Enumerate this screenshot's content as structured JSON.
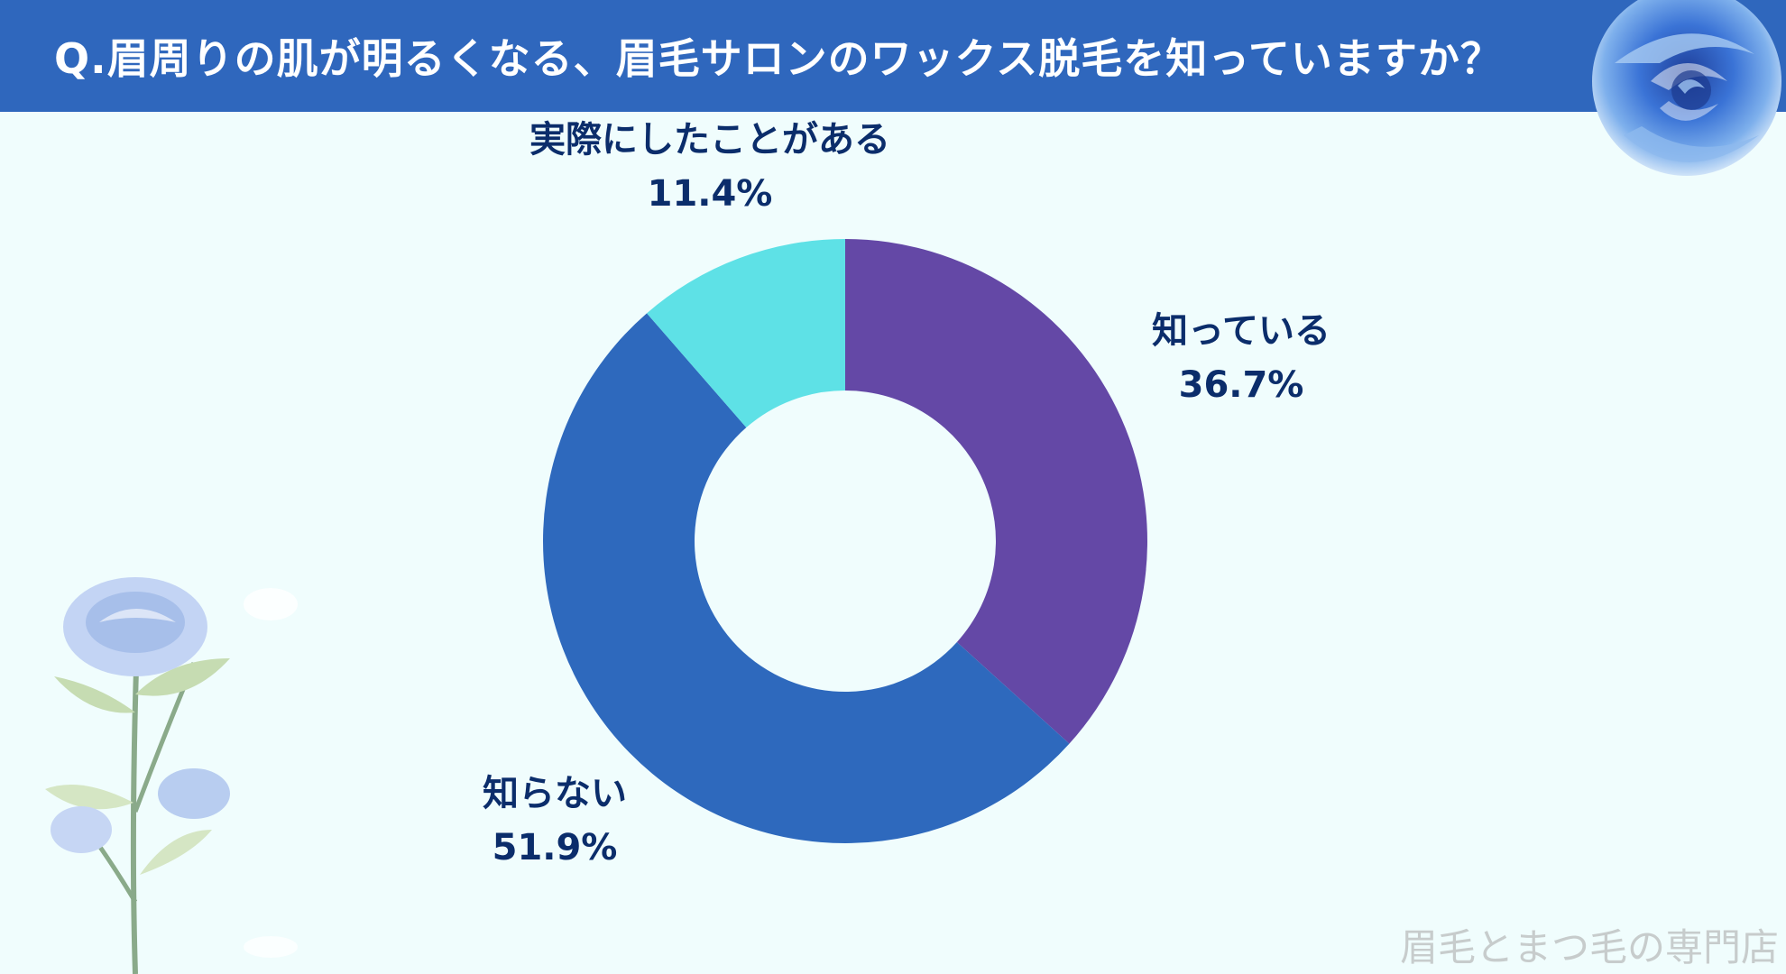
{
  "title": "Q.眉周りの肌が明るくなる、眉毛サロンのワックス脱毛を知っていますか？",
  "watermark": "眉毛とまつ毛の専門店",
  "colors": {
    "header": "#2f67bd",
    "label": "#0b2d6b",
    "background": "#f0fdfd"
  },
  "chart_data": {
    "type": "pie",
    "donut": true,
    "slices": [
      {
        "label": "知っている",
        "value": 36.7,
        "display": "36.7%",
        "color": "#6448a6"
      },
      {
        "label": "知らない",
        "value": 51.9,
        "display": "51.9%",
        "color": "#2e69bd"
      },
      {
        "label": "実際にしたことがある",
        "value": 11.4,
        "display": "11.4%",
        "color": "#5ee1e6"
      }
    ]
  }
}
